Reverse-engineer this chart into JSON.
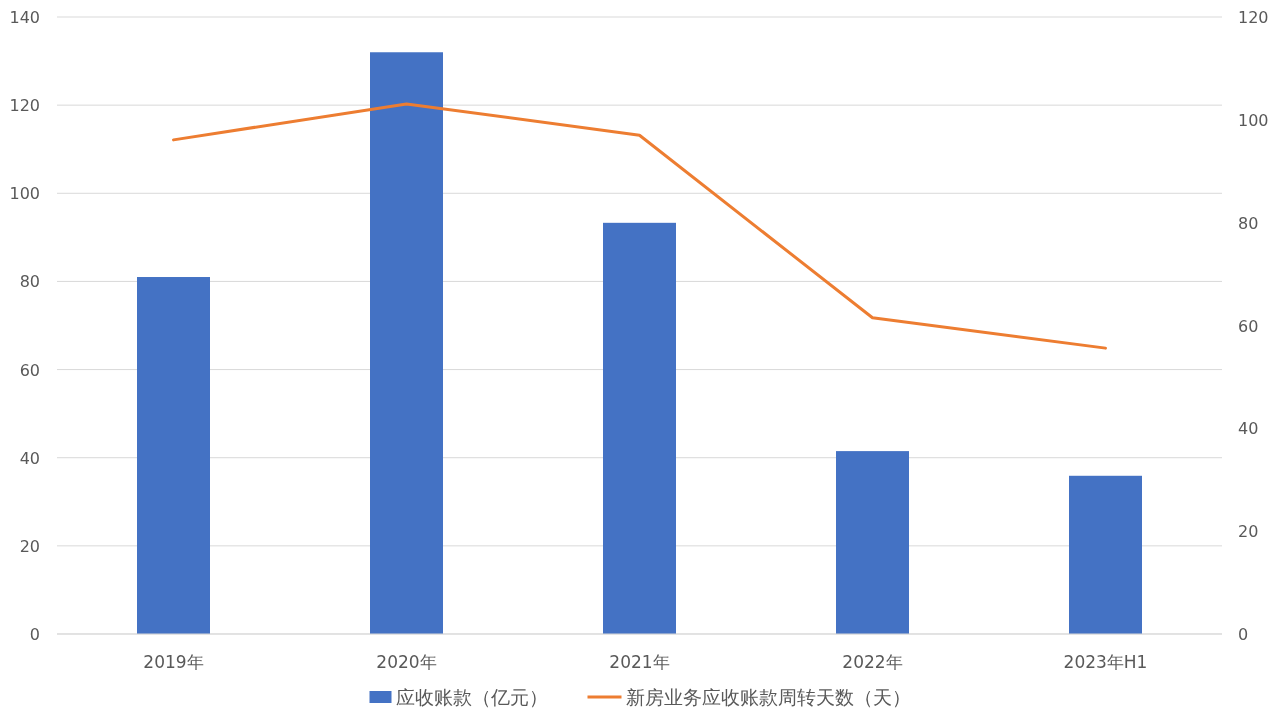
{
  "chart_data": {
    "type": "bar",
    "categories": [
      "2019年",
      "2020年",
      "2021年",
      "2022年",
      "2023年H1"
    ],
    "series": [
      {
        "name": "应收账款（亿元）",
        "color": "#4472c4",
        "values": [
          81,
          132,
          93.3,
          41.5,
          35.9
        ]
      },
      {
        "name": "新房业务应收账款周转天数（天）",
        "type": "line",
        "axis": "y2",
        "color": "#ed7d31",
        "values": [
          96.1,
          103.1,
          97,
          61.5,
          55.6
        ]
      }
    ],
    "ylim": [
      0,
      140
    ],
    "yticks": [
      0,
      20,
      40,
      60,
      80,
      100,
      120,
      140
    ],
    "y2lim": [
      0,
      120
    ],
    "y2ticks": [
      0,
      20,
      40,
      60,
      80,
      100,
      120
    ],
    "grid": "y",
    "legend": "bottom",
    "marker": "none",
    "line_style": "solid"
  }
}
